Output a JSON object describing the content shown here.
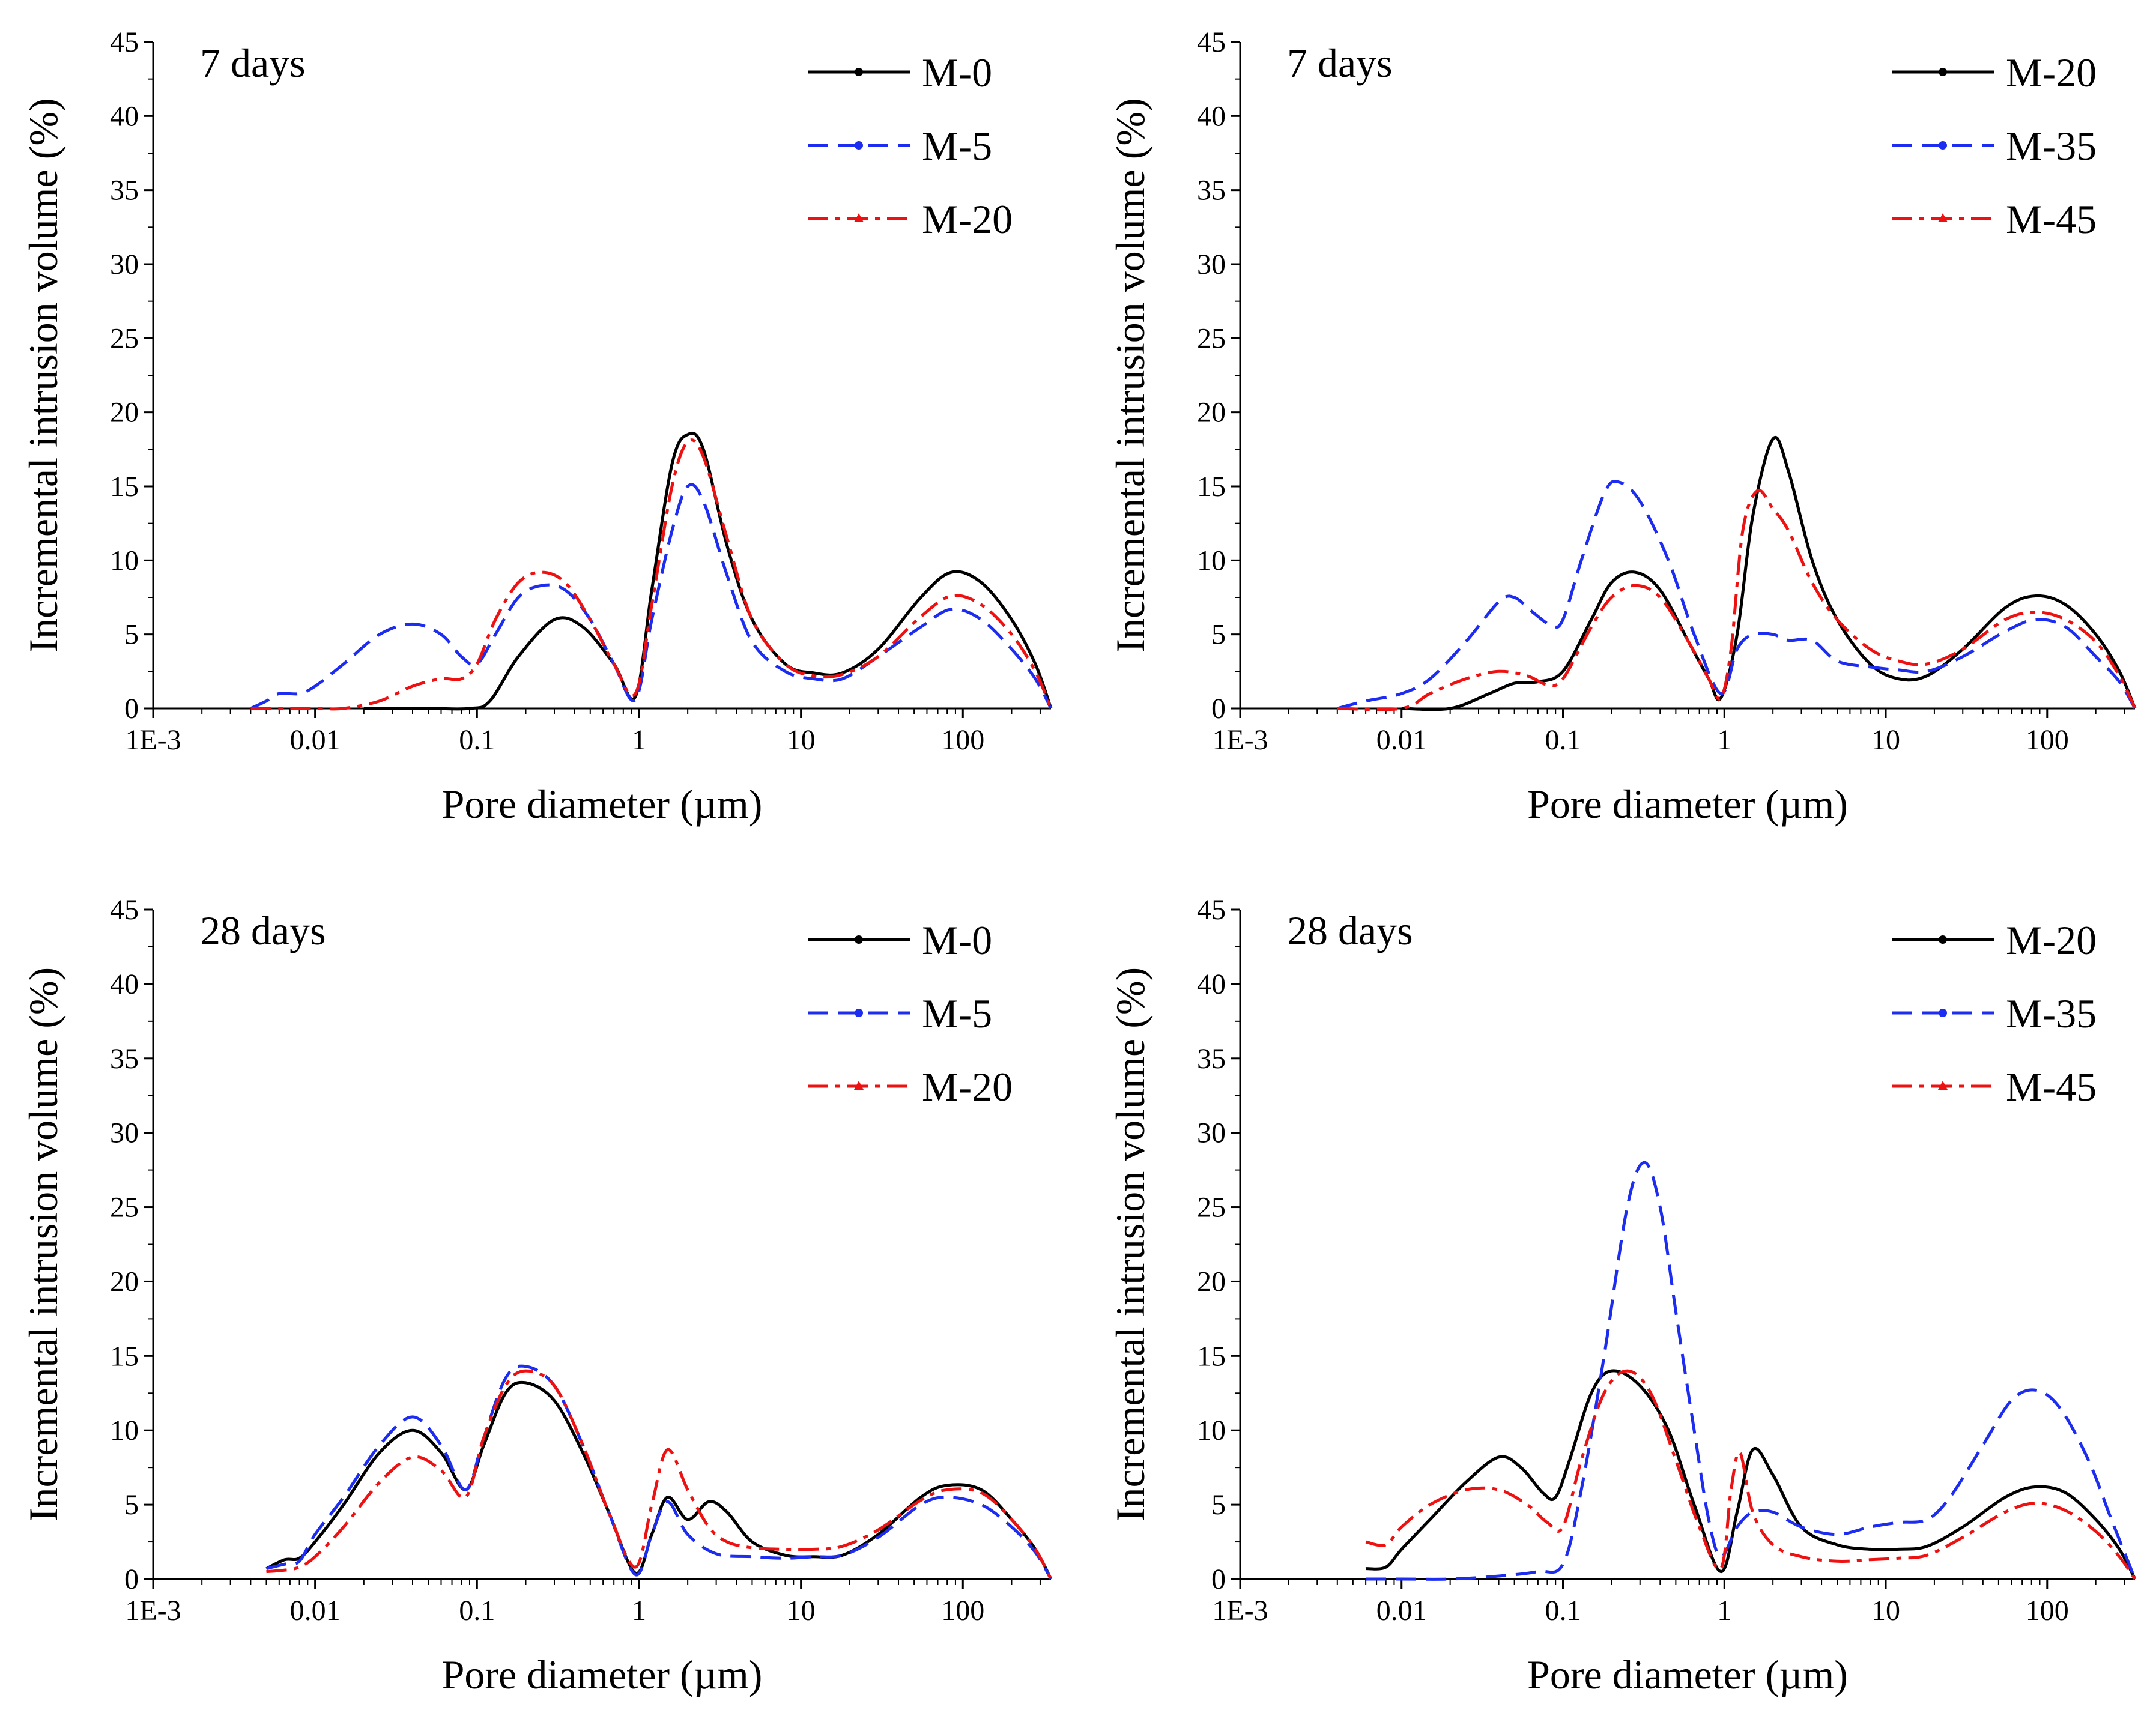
{
  "chart_data": [
    {
      "type": "line",
      "title": "7 days",
      "xlabel": "Pore diameter (µm)",
      "ylabel": "Incremental intrusion volume (%)",
      "xscale": "log",
      "xlim": [
        0.001,
        350
      ],
      "ylim": [
        0,
        45
      ],
      "xticks": [
        0.001,
        0.01,
        0.1,
        1,
        10,
        100
      ],
      "xtick_labels": [
        "1E-3",
        "0.01",
        "0.1",
        "1",
        "10",
        "100"
      ],
      "yticks": [
        0,
        5,
        10,
        15,
        20,
        25,
        30,
        35,
        40,
        45
      ],
      "legend_position": "top-right",
      "series": [
        {
          "name": "M-0",
          "color": "#000000",
          "dash": "solid",
          "x": [
            0.02,
            0.05,
            0.09,
            0.12,
            0.18,
            0.3,
            0.45,
            0.7,
            0.95,
            1.2,
            1.6,
            2.0,
            2.5,
            3.5,
            5,
            8,
            12,
            18,
            30,
            55,
            85,
            130,
            200,
            280,
            350
          ],
          "y": [
            0,
            0,
            0,
            0.5,
            3.5,
            6,
            5.5,
            3,
            0.8,
            8,
            16.5,
            18.5,
            17.5,
            11,
            6,
            3,
            2.4,
            2.4,
            4,
            7.5,
            9.2,
            8.5,
            6,
            3,
            0
          ]
        },
        {
          "name": "M-5",
          "color": "#1c2cf0",
          "dash": "dash",
          "x": [
            0.004,
            0.005,
            0.006,
            0.008,
            0.01,
            0.015,
            0.025,
            0.04,
            0.06,
            0.08,
            0.1,
            0.13,
            0.18,
            0.25,
            0.35,
            0.5,
            0.7,
            0.95,
            1.2,
            1.6,
            2.0,
            2.5,
            3.5,
            5,
            8,
            12,
            18,
            30,
            55,
            85,
            130,
            200,
            280,
            350
          ],
          "y": [
            0,
            0.5,
            1,
            1,
            1.5,
            3,
            5,
            5.7,
            5,
            3.5,
            3,
            5,
            7.5,
            8.3,
            8,
            6,
            3,
            0.6,
            6,
            12,
            15,
            14,
            9,
            4.5,
            2.5,
            2,
            2,
            3.5,
            5.5,
            6.7,
            6,
            4,
            2,
            0
          ]
        },
        {
          "name": "M-20",
          "color": "#ee1111",
          "dash": "dashdot",
          "x": [
            0.004,
            0.01,
            0.015,
            0.025,
            0.04,
            0.06,
            0.08,
            0.1,
            0.13,
            0.18,
            0.25,
            0.35,
            0.5,
            0.7,
            0.95,
            1.2,
            1.6,
            2.0,
            2.5,
            3.5,
            5,
            8,
            12,
            18,
            30,
            55,
            85,
            130,
            200,
            280,
            350
          ],
          "y": [
            0,
            0,
            0,
            0.5,
            1.5,
            2,
            2,
            3,
            6,
            8.5,
            9.2,
            8.5,
            6,
            3,
            1,
            7,
            15,
            18,
            17,
            11.5,
            6,
            3,
            2.2,
            2.3,
            3.5,
            6.2,
            7.6,
            7,
            5,
            2.5,
            0
          ]
        }
      ]
    },
    {
      "type": "line",
      "title": "7 days",
      "xlabel": "Pore diameter (µm)",
      "ylabel": "Incremental intrusion volume (%)",
      "xscale": "log",
      "xlim": [
        0.001,
        350
      ],
      "ylim": [
        0,
        45
      ],
      "xticks": [
        0.001,
        0.01,
        0.1,
        1,
        10,
        100
      ],
      "xtick_labels": [
        "1E-3",
        "0.01",
        "0.1",
        "1",
        "10",
        "100"
      ],
      "yticks": [
        0,
        5,
        10,
        15,
        20,
        25,
        30,
        35,
        40,
        45
      ],
      "legend_position": "top-right",
      "series": [
        {
          "name": "M-20",
          "color": "#000000",
          "dash": "solid",
          "x": [
            0.01,
            0.02,
            0.035,
            0.05,
            0.07,
            0.1,
            0.15,
            0.2,
            0.28,
            0.4,
            0.6,
            0.8,
            0.95,
            1.2,
            1.5,
            2.0,
            2.5,
            3.5,
            5,
            8,
            12,
            18,
            30,
            55,
            85,
            130,
            200,
            280,
            350
          ],
          "y": [
            0,
            0,
            1,
            1.7,
            1.8,
            2.5,
            6,
            8.5,
            9.2,
            8,
            4.5,
            2,
            0.7,
            5,
            13,
            18.2,
            16,
            10,
            6,
            3,
            2,
            2.2,
            4,
            6.8,
            7.6,
            7,
            5,
            2.5,
            0
          ]
        },
        {
          "name": "M-35",
          "color": "#1c2cf0",
          "dash": "dash",
          "x": [
            0.004,
            0.006,
            0.01,
            0.015,
            0.025,
            0.04,
            0.05,
            0.065,
            0.085,
            0.1,
            0.13,
            0.18,
            0.22,
            0.3,
            0.45,
            0.65,
            0.95,
            1.2,
            1.5,
            2.0,
            2.5,
            3.5,
            5,
            8,
            12,
            18,
            30,
            55,
            85,
            130,
            200,
            280,
            350
          ],
          "y": [
            0,
            0.5,
            1,
            2,
            4.5,
            7.2,
            7.5,
            6.5,
            5.6,
            6,
            10,
            14.5,
            15.3,
            14,
            10,
            5,
            1,
            4,
            5,
            5,
            4.6,
            4.6,
            3.2,
            2.8,
            2.6,
            2.5,
            3.5,
            5.2,
            6,
            5.5,
            3.5,
            1.8,
            0
          ]
        },
        {
          "name": "M-45",
          "color": "#ee1111",
          "dash": "dashdot",
          "x": [
            0.004,
            0.01,
            0.015,
            0.025,
            0.04,
            0.06,
            0.08,
            0.1,
            0.15,
            0.2,
            0.28,
            0.4,
            0.6,
            0.8,
            0.95,
            1.1,
            1.3,
            1.6,
            2.0,
            2.5,
            3.5,
            5,
            8,
            12,
            18,
            30,
            55,
            85,
            130,
            200,
            280,
            350
          ],
          "y": [
            0,
            0,
            1,
            2,
            2.5,
            2.2,
            1.6,
            2,
            5.5,
            7.5,
            8.3,
            7.5,
            4.5,
            2,
            0.7,
            4,
            12,
            14.7,
            13.5,
            12,
            8.5,
            6,
            4,
            3.2,
            3,
            4,
            6,
            6.5,
            6,
            4.5,
            2.2,
            0
          ]
        }
      ]
    },
    {
      "type": "line",
      "title": "28 days",
      "xlabel": "Pore diameter (µm)",
      "ylabel": "Incremental intrusion volume (%)",
      "xscale": "log",
      "xlim": [
        0.001,
        350
      ],
      "ylim": [
        0,
        45
      ],
      "xticks": [
        0.001,
        0.01,
        0.1,
        1,
        10,
        100
      ],
      "xtick_labels": [
        "1E-3",
        "0.01",
        "0.1",
        "1",
        "10",
        "100"
      ],
      "yticks": [
        0,
        5,
        10,
        15,
        20,
        25,
        30,
        35,
        40,
        45
      ],
      "legend_position": "top-right",
      "series": [
        {
          "name": "M-0",
          "color": "#000000",
          "dash": "solid",
          "x": [
            0.005,
            0.0065,
            0.008,
            0.01,
            0.015,
            0.025,
            0.04,
            0.06,
            0.085,
            0.11,
            0.15,
            0.2,
            0.3,
            0.45,
            0.65,
            0.95,
            1.2,
            1.5,
            2.0,
            2.7,
            3.5,
            5,
            8,
            12,
            18,
            30,
            55,
            80,
            130,
            200,
            280,
            350
          ],
          "y": [
            0.7,
            1.3,
            1.4,
            2.5,
            5,
            8.5,
            10,
            8.5,
            6,
            9,
            12.5,
            13.2,
            12,
            8.5,
            4.5,
            0.4,
            3,
            5.5,
            4,
            5.2,
            4.5,
            2.5,
            1.6,
            1.5,
            1.6,
            3,
            5.5,
            6.3,
            6,
            4,
            2,
            0
          ]
        },
        {
          "name": "M-5",
          "color": "#1c2cf0",
          "dash": "dash",
          "x": [
            0.005,
            0.0065,
            0.008,
            0.01,
            0.015,
            0.025,
            0.04,
            0.06,
            0.085,
            0.11,
            0.15,
            0.2,
            0.3,
            0.45,
            0.65,
            0.95,
            1.2,
            1.5,
            2.0,
            3.0,
            5,
            8,
            12,
            18,
            30,
            55,
            80,
            130,
            200,
            280,
            350
          ],
          "y": [
            0.7,
            1,
            1.2,
            3,
            5.5,
            9,
            10.9,
            9,
            6,
            9.5,
            13.5,
            14.3,
            13,
            9,
            4.5,
            0.3,
            3,
            5.2,
            3,
            1.7,
            1.5,
            1.4,
            1.5,
            1.6,
            2.8,
            5,
            5.5,
            5,
            3.5,
            1.8,
            0
          ]
        },
        {
          "name": "M-20",
          "color": "#ee1111",
          "dash": "dashdot",
          "x": [
            0.005,
            0.0065,
            0.008,
            0.01,
            0.015,
            0.025,
            0.04,
            0.06,
            0.085,
            0.11,
            0.15,
            0.2,
            0.3,
            0.45,
            0.65,
            0.95,
            1.2,
            1.5,
            2.0,
            2.7,
            3.5,
            5,
            8,
            12,
            18,
            30,
            55,
            80,
            130,
            200,
            280,
            350
          ],
          "y": [
            0.5,
            0.6,
            0.8,
            1.5,
            3.5,
            6.5,
            8.2,
            7.3,
            5.5,
            9.5,
            13,
            14,
            13,
            9,
            4.5,
            0.8,
            5,
            8.7,
            6,
            3.5,
            2.5,
            2.1,
            2,
            2,
            2.2,
            3.3,
            5.3,
            6,
            5.8,
            4,
            2,
            0
          ]
        }
      ]
    },
    {
      "type": "line",
      "title": "28 days",
      "xlabel": "Pore diameter (µm)",
      "ylabel": "Incremental intrusion volume (%)",
      "xscale": "log",
      "xlim": [
        0.001,
        350
      ],
      "ylim": [
        0,
        45
      ],
      "xticks": [
        0.001,
        0.01,
        0.1,
        1,
        10,
        100
      ],
      "xtick_labels": [
        "1E-3",
        "0.01",
        "0.1",
        "1",
        "10",
        "100"
      ],
      "yticks": [
        0,
        5,
        10,
        15,
        20,
        25,
        30,
        35,
        40,
        45
      ],
      "legend_position": "top-right",
      "series": [
        {
          "name": "M-20",
          "color": "#000000",
          "dash": "solid",
          "x": [
            0.006,
            0.008,
            0.01,
            0.015,
            0.025,
            0.04,
            0.055,
            0.075,
            0.09,
            0.11,
            0.15,
            0.2,
            0.3,
            0.45,
            0.65,
            0.95,
            1.2,
            1.5,
            2.0,
            3.0,
            5,
            8,
            12,
            18,
            30,
            55,
            85,
            130,
            200,
            280,
            350
          ],
          "y": [
            0.7,
            0.8,
            2,
            4,
            6.5,
            8.2,
            7.5,
            5.8,
            5.5,
            8,
            12.5,
            14,
            13,
            10,
            5,
            0.5,
            4.5,
            8.7,
            7,
            3.5,
            2.3,
            2,
            2,
            2.2,
            3.5,
            5.5,
            6.2,
            5.8,
            4,
            2,
            0
          ]
        },
        {
          "name": "M-35",
          "color": "#1c2cf0",
          "dash": "dash",
          "x": [
            0.006,
            0.01,
            0.02,
            0.04,
            0.07,
            0.1,
            0.13,
            0.18,
            0.25,
            0.32,
            0.4,
            0.5,
            0.65,
            0.8,
            0.95,
            1.2,
            1.5,
            2.0,
            3.0,
            5,
            8,
            12,
            18,
            25,
            40,
            60,
            85,
            120,
            180,
            250,
            350
          ],
          "y": [
            0,
            0,
            0,
            0.2,
            0.5,
            1,
            6,
            15,
            25,
            28,
            25,
            18,
            10,
            4,
            1.5,
            3.5,
            4.5,
            4.5,
            3.5,
            3,
            3.5,
            3.8,
            4,
            5.5,
            9,
            12,
            12.7,
            11.5,
            8,
            4,
            0
          ]
        },
        {
          "name": "M-45",
          "color": "#ee1111",
          "dash": "dashdot",
          "x": [
            0.006,
            0.008,
            0.01,
            0.015,
            0.025,
            0.04,
            0.06,
            0.08,
            0.1,
            0.13,
            0.18,
            0.25,
            0.35,
            0.5,
            0.7,
            0.95,
            1.1,
            1.25,
            1.5,
            2.0,
            3.0,
            5,
            8,
            12,
            18,
            30,
            55,
            85,
            130,
            200,
            280,
            350
          ],
          "y": [
            2.5,
            2.3,
            3.5,
            5,
            6,
            6,
            5,
            3.8,
            3.5,
            8,
            12.5,
            14,
            12.5,
            8,
            3.5,
            0.7,
            6,
            8.5,
            4.5,
            2.3,
            1.5,
            1.2,
            1.3,
            1.4,
            1.6,
            2.8,
            4.5,
            5.1,
            4.6,
            3.2,
            1.5,
            0
          ]
        }
      ]
    }
  ]
}
